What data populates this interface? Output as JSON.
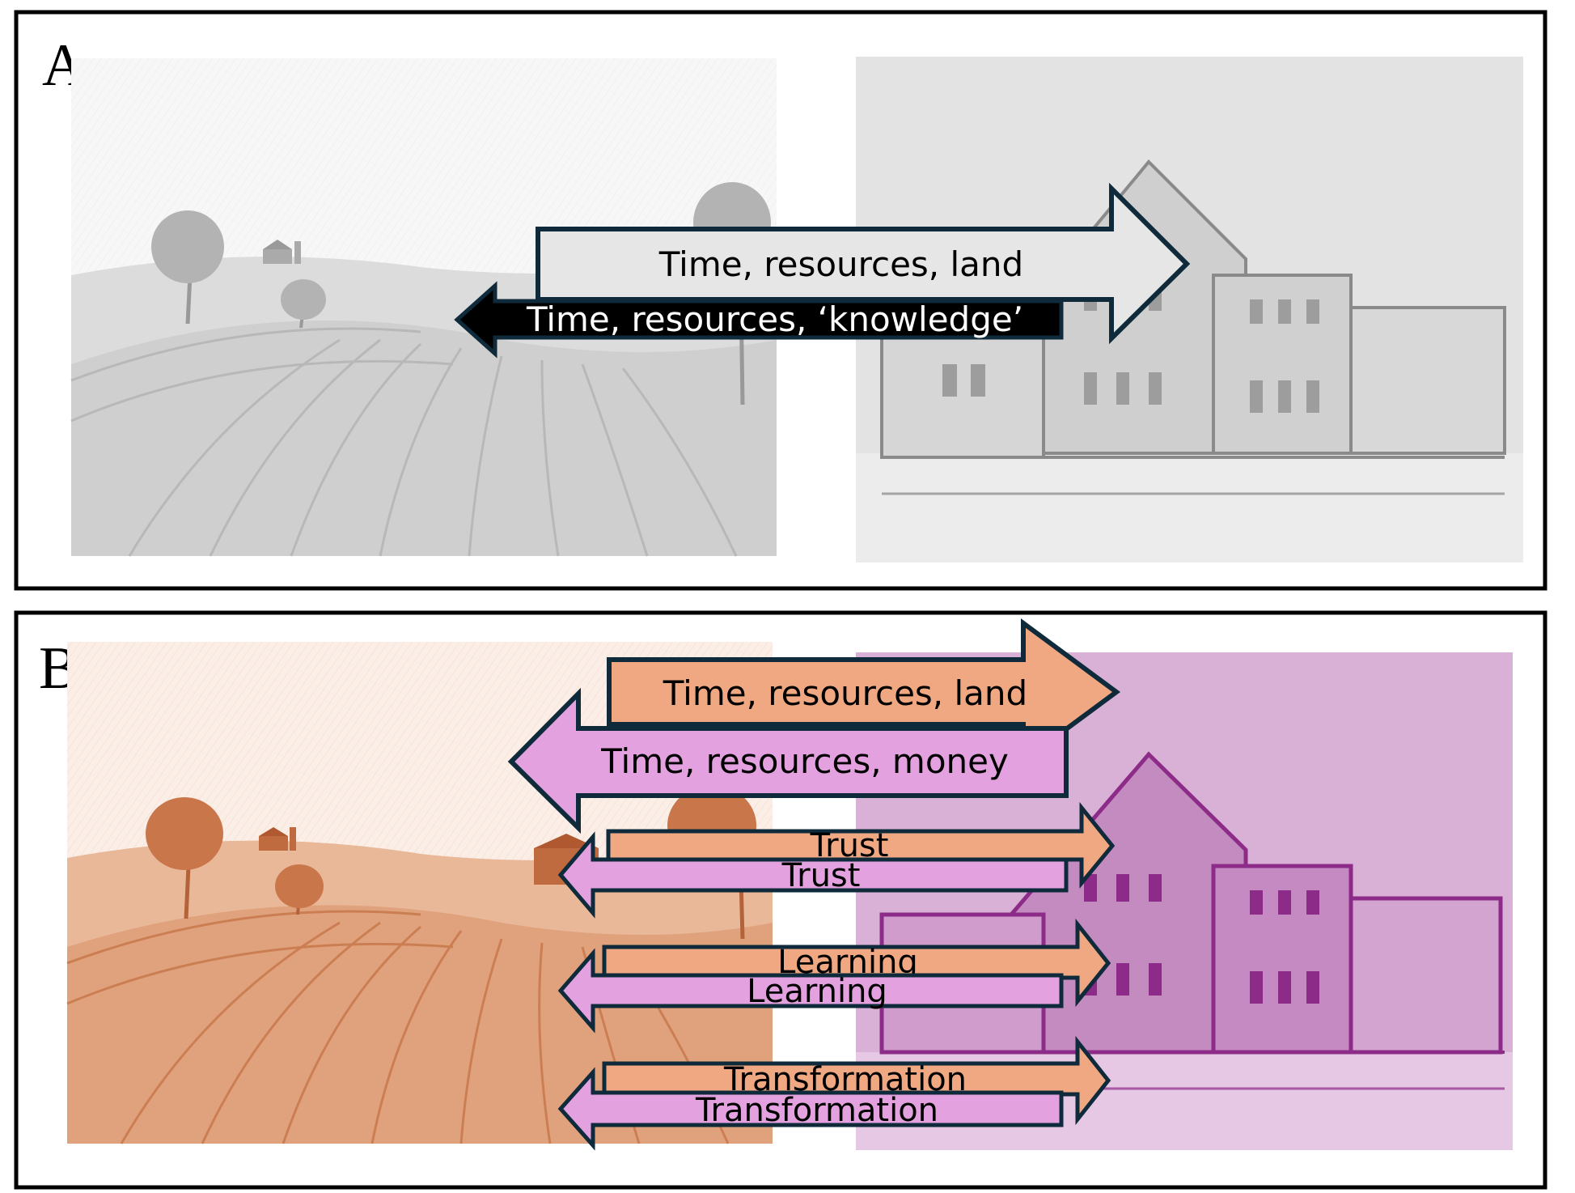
{
  "panels": [
    {
      "letter": "A",
      "arrows": {
        "to_institution": "Time, resources, land",
        "to_farm": "Time, resources, ‘knowledge’"
      }
    },
    {
      "letter": "B",
      "arrows": {
        "resources_to_institution": "Time, resources, land",
        "resources_to_farm": "Time, resources, money",
        "trust_to_institution": "Trust",
        "trust_to_farm": "Trust",
        "learning_to_institution": "Learning",
        "learning_to_farm": "Learning",
        "transformation_to_institution": "Transformation",
        "transformation_to_farm": "Transformation"
      }
    }
  ],
  "colors": {
    "frame": "#000000",
    "arrow_outline": "#0f2a3a",
    "panel_a_arrow_light": "#e6e6e6",
    "panel_a_arrow_dark": "#000000",
    "farm_tint_b": "#c8764a",
    "institution_tint_b": "#9a3a96",
    "arrow_orange": "#f0a882",
    "arrow_pink": "#e3a2df"
  }
}
